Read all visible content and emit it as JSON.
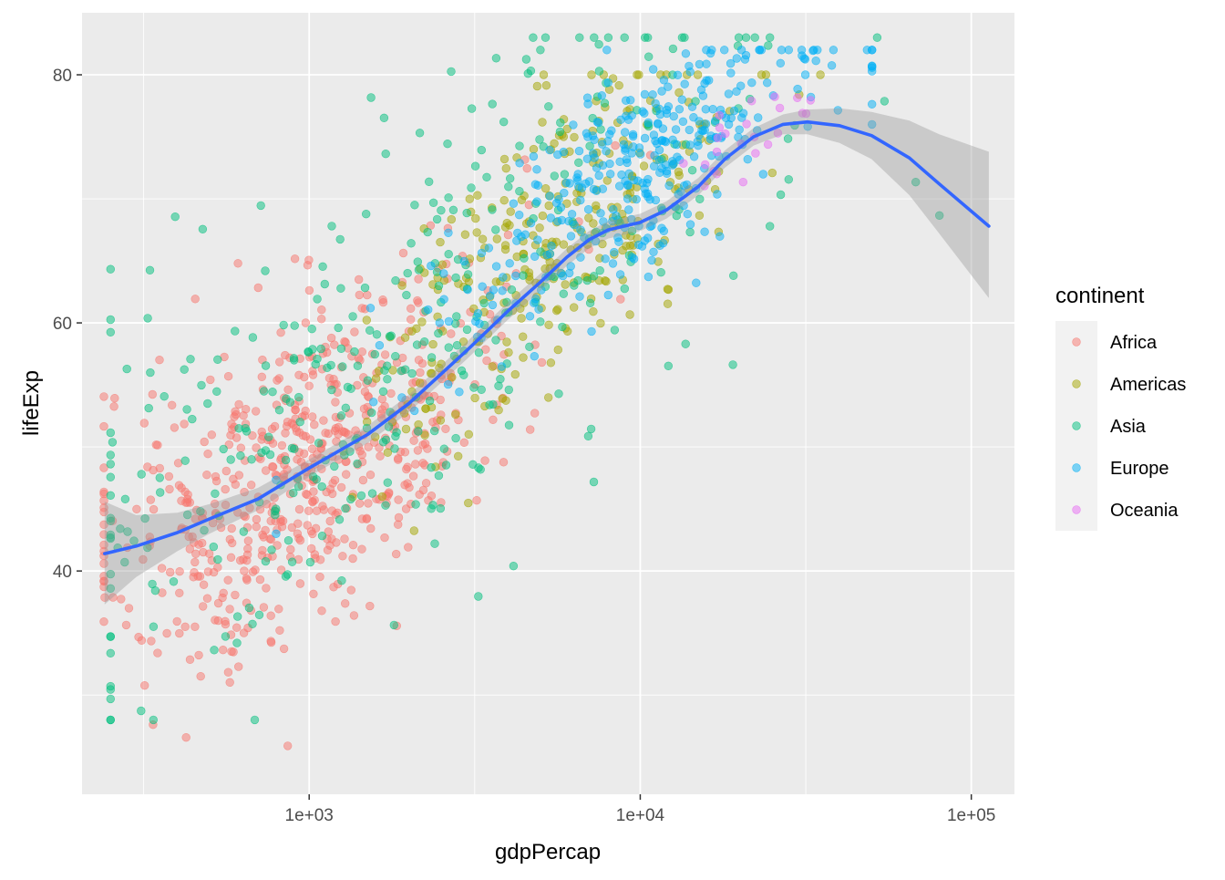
{
  "chart_data": {
    "type": "scatter",
    "xlabel": "gdpPercap",
    "ylabel": "lifeExp",
    "x_scale": "log10",
    "xlim": [
      206,
      135000
    ],
    "ylim": [
      22,
      85
    ],
    "x_ticks": [
      {
        "value": 1000,
        "label": "1e+03"
      },
      {
        "value": 10000,
        "label": "1e+04"
      },
      {
        "value": 100000,
        "label": "1e+05"
      }
    ],
    "y_ticks": [
      {
        "value": 40,
        "label": "40"
      },
      {
        "value": 60,
        "label": "60"
      },
      {
        "value": 80,
        "label": "80"
      }
    ],
    "grid": true,
    "legend": {
      "title": "continent",
      "position": "right"
    },
    "point_alpha": 0.5,
    "series": [
      {
        "name": "Africa",
        "color": "#F8766D"
      },
      {
        "name": "Americas",
        "color": "#A3A500"
      },
      {
        "name": "Asia",
        "color": "#00BF7D"
      },
      {
        "name": "Europe",
        "color": "#00B0F6"
      },
      {
        "name": "Oceania",
        "color": "#E76BF3"
      }
    ],
    "smooth": {
      "color": "#3366FF",
      "band_color": "#999999",
      "points": [
        {
          "x": 241,
          "y": 41.4,
          "lo": 37.3,
          "hi": 45.6
        },
        {
          "x": 300,
          "y": 42.0,
          "lo": 39.5,
          "hi": 44.5
        },
        {
          "x": 400,
          "y": 43.1,
          "lo": 41.6,
          "hi": 44.7
        },
        {
          "x": 500,
          "y": 44.2,
          "lo": 43.0,
          "hi": 45.4
        },
        {
          "x": 700,
          "y": 45.8,
          "lo": 44.9,
          "hi": 46.7
        },
        {
          "x": 1000,
          "y": 48.3,
          "lo": 47.6,
          "hi": 49.0
        },
        {
          "x": 1500,
          "y": 51.0,
          "lo": 50.3,
          "hi": 51.7
        },
        {
          "x": 2000,
          "y": 53.5,
          "lo": 52.8,
          "hi": 54.2
        },
        {
          "x": 3000,
          "y": 57.8,
          "lo": 57.1,
          "hi": 58.5
        },
        {
          "x": 4000,
          "y": 61.0,
          "lo": 60.3,
          "hi": 61.7
        },
        {
          "x": 5000,
          "y": 63.3,
          "lo": 62.6,
          "hi": 64.0
        },
        {
          "x": 6000,
          "y": 65.3,
          "lo": 64.6,
          "hi": 66.0
        },
        {
          "x": 7000,
          "y": 66.7,
          "lo": 66.0,
          "hi": 67.4
        },
        {
          "x": 8000,
          "y": 67.5,
          "lo": 66.8,
          "hi": 68.2
        },
        {
          "x": 10000,
          "y": 68.1,
          "lo": 67.4,
          "hi": 68.8
        },
        {
          "x": 12000,
          "y": 69.1,
          "lo": 68.4,
          "hi": 69.8
        },
        {
          "x": 15000,
          "y": 71.0,
          "lo": 70.3,
          "hi": 71.7
        },
        {
          "x": 18000,
          "y": 73.2,
          "lo": 72.5,
          "hi": 73.9
        },
        {
          "x": 22000,
          "y": 75.0,
          "lo": 74.3,
          "hi": 75.7
        },
        {
          "x": 27000,
          "y": 76.0,
          "lo": 75.2,
          "hi": 76.8
        },
        {
          "x": 32000,
          "y": 76.2,
          "lo": 75.2,
          "hi": 77.2
        },
        {
          "x": 40000,
          "y": 75.9,
          "lo": 74.5,
          "hi": 77.3
        },
        {
          "x": 50000,
          "y": 75.1,
          "lo": 73.2,
          "hi": 77.0
        },
        {
          "x": 65000,
          "y": 73.3,
          "lo": 70.3,
          "hi": 76.3
        },
        {
          "x": 80000,
          "y": 71.2,
          "lo": 67.2,
          "hi": 75.2
        },
        {
          "x": 113000,
          "y": 67.8,
          "lo": 62.0,
          "hi": 73.8
        }
      ]
    }
  }
}
